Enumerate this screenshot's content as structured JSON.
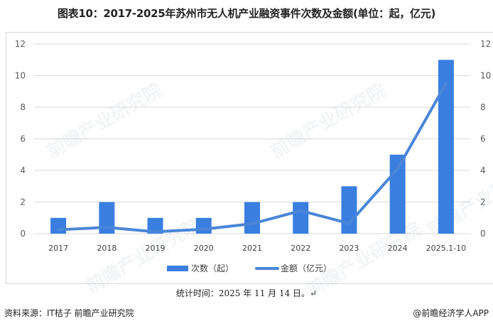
{
  "title": "图表10：2017-2025年苏州市无人机产业融资事件次数及金额(单位：起，亿元)",
  "legend": {
    "bar_label": "次数（起）",
    "line_label": "金额（亿元）"
  },
  "footer": {
    "stat_time": "统计时间：2025 年 11 月 14 日。↵",
    "source": "资料来源：IT桔子 前瞻产业研究院",
    "credit": "@前瞻经济学人APP"
  },
  "watermark": "前瞻产业研究院",
  "colors": {
    "bar": "#3a7fe0",
    "line": "#4a86d8",
    "grid": "#d9d9d9"
  },
  "chart_data": {
    "type": "bar",
    "title": "图表10：2017-2025年苏州市无人机产业融资事件次数及金额(单位：起，亿元)",
    "categories": [
      "2017",
      "2018",
      "2019",
      "2020",
      "2021",
      "2022",
      "2023",
      "2024",
      "2025.1-10"
    ],
    "series": [
      {
        "name": "次数（起）",
        "type": "bar",
        "axis": "left",
        "values": [
          1,
          2,
          1,
          1,
          2,
          2,
          3,
          5,
          11
        ]
      },
      {
        "name": "金额（亿元）",
        "type": "line",
        "axis": "right",
        "values": [
          0.25,
          0.4,
          0.12,
          0.28,
          0.63,
          1.45,
          0.65,
          4.1,
          9.5
        ]
      }
    ],
    "yticks_left": [
      "0",
      "2",
      "4",
      "6",
      "8",
      "10",
      "12"
    ],
    "yticks_right": [
      "0",
      "2",
      "4",
      "6",
      "8",
      "10",
      "12"
    ],
    "ylim": [
      0,
      12
    ],
    "y2lim": [
      0,
      12
    ],
    "grid": true,
    "legend_position": "bottom",
    "xlabel": "",
    "ylabel": ""
  }
}
